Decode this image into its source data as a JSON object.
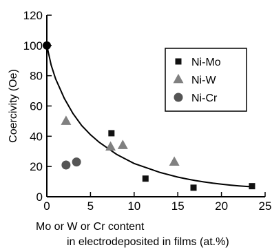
{
  "chart_data": {
    "type": "scatter",
    "title": "",
    "xlabel_line1": "Mo or W or Cr content",
    "xlabel_line2": "in electrodeposited in films (at.%)",
    "ylabel": "Coercivity (Oe)",
    "xlim": [
      0,
      25
    ],
    "ylim": [
      0,
      120
    ],
    "xticks": [
      0,
      5,
      10,
      15,
      20,
      25
    ],
    "yticks": [
      0,
      20,
      40,
      60,
      80,
      100,
      120
    ],
    "grid": false,
    "legend_position": "top-right",
    "series": [
      {
        "name": "Ni-Mo",
        "marker": "square",
        "color": "#111111",
        "points": [
          [
            7.4,
            42
          ],
          [
            11.3,
            12
          ],
          [
            16.8,
            6
          ],
          [
            23.5,
            7
          ]
        ]
      },
      {
        "name": "Ni-W",
        "marker": "triangle",
        "color": "#808080",
        "points": [
          [
            2.2,
            50
          ],
          [
            7.3,
            33
          ],
          [
            8.7,
            34
          ],
          [
            14.6,
            23
          ]
        ]
      },
      {
        "name": "Ni-Cr",
        "marker": "circle",
        "color": "#555555",
        "points": [
          [
            2.2,
            21
          ],
          [
            3.4,
            23
          ]
        ]
      }
    ],
    "origin_point": {
      "marker": "circle",
      "color": "#000000",
      "point": [
        0,
        100
      ]
    },
    "fit_curve": {
      "type": "line",
      "color": "#000000",
      "points": [
        [
          0,
          100
        ],
        [
          0.5,
          87
        ],
        [
          1,
          78
        ],
        [
          2,
          65
        ],
        [
          3,
          55
        ],
        [
          4,
          47
        ],
        [
          5,
          41
        ],
        [
          6,
          36
        ],
        [
          7,
          32
        ],
        [
          8,
          28
        ],
        [
          9,
          25
        ],
        [
          10,
          22
        ],
        [
          11,
          20
        ],
        [
          12,
          18
        ],
        [
          13,
          16
        ],
        [
          14,
          14.5
        ],
        [
          15,
          13
        ],
        [
          16,
          11.8
        ],
        [
          17,
          10.7
        ],
        [
          18,
          9.8
        ],
        [
          19,
          9
        ],
        [
          20,
          8.3
        ],
        [
          21,
          7.7
        ],
        [
          22,
          7.2
        ],
        [
          23,
          6.8
        ],
        [
          23.6,
          6.6
        ]
      ]
    }
  }
}
